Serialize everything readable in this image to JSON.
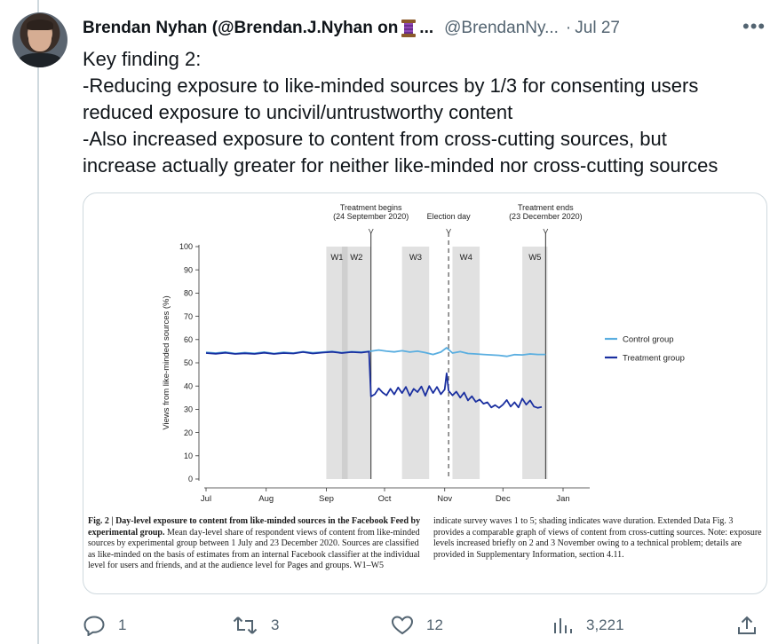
{
  "author": {
    "display_name": "Brendan Nyhan (@Brendan.J.Nyhan on",
    "name_emoji_icon": "spool-of-thread-icon",
    "name_truncation": "...",
    "handle": "@BrendanNy...",
    "separator": "·",
    "date": "Jul 27"
  },
  "tweet": {
    "lines": [
      "Key finding 2:",
      "-Reducing exposure to like-minded sources by 1/3 for consenting users",
      "reduced exposure to uncivil/untrustworthy content",
      "-Also increased exposure to content from cross-cutting sources, but",
      "increase actually greater for neither like-minded nor cross-cutting sources"
    ]
  },
  "actions": {
    "reply_count": "1",
    "retweet_count": "3",
    "like_count": "12",
    "views_count": "3,221"
  },
  "figure": {
    "caption_left_bold": "Fig. 2 | Day-level exposure to content from like-minded sources in the Facebook Feed by experimental group.",
    "caption_left_rest": " Mean day-level share of respondent views of content from like-minded sources by experimental group between 1 July and 23 December 2020. Sources are classified as like-minded on the basis of estimates from an internal Facebook classifier at the individual level for users and friends, and at the audience level for Pages and groups. W1–W5",
    "caption_right": "indicate survey waves 1 to 5; shading indicates wave duration. Extended Data Fig. 3 provides a comparable graph of views of content from cross-cutting sources. Note: exposure levels increased briefly on 2 and 3 November owing to a technical problem; details are provided in Supplementary Information, section 4.11."
  },
  "chart_data": {
    "type": "line",
    "ylabel": "Views from like-minded sources (%)",
    "xlabel": "",
    "ylim": [
      0,
      100
    ],
    "yticks": [
      "0",
      "10",
      "20",
      "30",
      "40",
      "50",
      "60",
      "70",
      "80",
      "90",
      "100"
    ],
    "xtick_labels": [
      "Jul",
      "Aug",
      "Sep",
      "Oct",
      "Nov",
      "Dec",
      "Jan"
    ],
    "x_unit": "day of 2020 (1 = 1 July)",
    "xlim": [
      1,
      185
    ],
    "xticks_day": [
      1,
      32,
      63,
      93,
      124,
      154,
      185
    ],
    "grid": false,
    "legend_position": "right",
    "waves": [
      {
        "label": "W1",
        "start": 63,
        "end": 74
      },
      {
        "label": "W2",
        "start": 71,
        "end": 86
      },
      {
        "label": "W3",
        "start": 102,
        "end": 116
      },
      {
        "label": "W4",
        "start": 128,
        "end": 142
      },
      {
        "label": "W5",
        "start": 164,
        "end": 177
      }
    ],
    "events": [
      {
        "label_line1": "Treatment begins",
        "label_line2": "(24 September 2020)",
        "day": 86,
        "style": "solid"
      },
      {
        "label_line1": "",
        "label_line2": "Election day",
        "day": 126,
        "style": "dashed"
      },
      {
        "label_line1": "Treatment ends",
        "label_line2": "(23 December 2020)",
        "day": 176,
        "style": "solid"
      }
    ],
    "series": [
      {
        "name": "Control group",
        "color": "#5aaee0",
        "points": [
          [
            1,
            54.5
          ],
          [
            6,
            54.2
          ],
          [
            11,
            54.6
          ],
          [
            16,
            54.0
          ],
          [
            21,
            54.4
          ],
          [
            26,
            54.1
          ],
          [
            31,
            54.6
          ],
          [
            36,
            54.0
          ],
          [
            41,
            54.5
          ],
          [
            46,
            54.2
          ],
          [
            51,
            54.8
          ],
          [
            56,
            54.3
          ],
          [
            61,
            54.6
          ],
          [
            66,
            54.9
          ],
          [
            71,
            54.4
          ],
          [
            76,
            54.8
          ],
          [
            81,
            54.6
          ],
          [
            86,
            55.0
          ],
          [
            90,
            55.5
          ],
          [
            94,
            55.0
          ],
          [
            98,
            54.7
          ],
          [
            102,
            55.2
          ],
          [
            106,
            54.6
          ],
          [
            110,
            55.0
          ],
          [
            114,
            54.4
          ],
          [
            118,
            53.6
          ],
          [
            122,
            54.6
          ],
          [
            125,
            56.5
          ],
          [
            128,
            54.2
          ],
          [
            132,
            54.8
          ],
          [
            136,
            54.0
          ],
          [
            140,
            53.8
          ],
          [
            144,
            53.6
          ],
          [
            148,
            53.4
          ],
          [
            152,
            53.2
          ],
          [
            156,
            52.8
          ],
          [
            160,
            53.5
          ],
          [
            164,
            53.4
          ],
          [
            168,
            53.8
          ],
          [
            172,
            53.6
          ],
          [
            176,
            53.6
          ]
        ]
      },
      {
        "name": "Treatment group",
        "color": "#1a2fa0",
        "points": [
          [
            1,
            54.2
          ],
          [
            6,
            53.9
          ],
          [
            11,
            54.3
          ],
          [
            16,
            53.8
          ],
          [
            21,
            54.1
          ],
          [
            26,
            53.8
          ],
          [
            31,
            54.3
          ],
          [
            36,
            53.8
          ],
          [
            41,
            54.2
          ],
          [
            46,
            54.0
          ],
          [
            51,
            54.6
          ],
          [
            56,
            54.0
          ],
          [
            61,
            54.4
          ],
          [
            66,
            54.7
          ],
          [
            71,
            54.2
          ],
          [
            76,
            54.6
          ],
          [
            81,
            54.4
          ],
          [
            85,
            54.8
          ],
          [
            86,
            35.5
          ],
          [
            88,
            36.5
          ],
          [
            90,
            39.0
          ],
          [
            92,
            37.2
          ],
          [
            94,
            36.0
          ],
          [
            96,
            38.8
          ],
          [
            98,
            36.4
          ],
          [
            100,
            39.4
          ],
          [
            102,
            37.0
          ],
          [
            104,
            39.6
          ],
          [
            106,
            35.8
          ],
          [
            108,
            38.8
          ],
          [
            110,
            37.4
          ],
          [
            112,
            39.8
          ],
          [
            114,
            35.8
          ],
          [
            116,
            40.0
          ],
          [
            118,
            37.0
          ],
          [
            120,
            39.6
          ],
          [
            122,
            36.5
          ],
          [
            124,
            38.5
          ],
          [
            125,
            45.5
          ],
          [
            126,
            38.0
          ],
          [
            128,
            36.0
          ],
          [
            130,
            37.6
          ],
          [
            132,
            35.0
          ],
          [
            134,
            37.2
          ],
          [
            136,
            33.8
          ],
          [
            138,
            35.6
          ],
          [
            140,
            33.2
          ],
          [
            142,
            34.2
          ],
          [
            144,
            32.4
          ],
          [
            146,
            33.0
          ],
          [
            148,
            30.8
          ],
          [
            150,
            31.8
          ],
          [
            152,
            30.6
          ],
          [
            154,
            32.0
          ],
          [
            156,
            34.0
          ],
          [
            158,
            31.2
          ],
          [
            160,
            33.0
          ],
          [
            162,
            30.8
          ],
          [
            164,
            34.6
          ],
          [
            166,
            32.0
          ],
          [
            168,
            33.8
          ],
          [
            170,
            31.2
          ],
          [
            172,
            30.6
          ],
          [
            174,
            31.0
          ]
        ]
      }
    ]
  }
}
